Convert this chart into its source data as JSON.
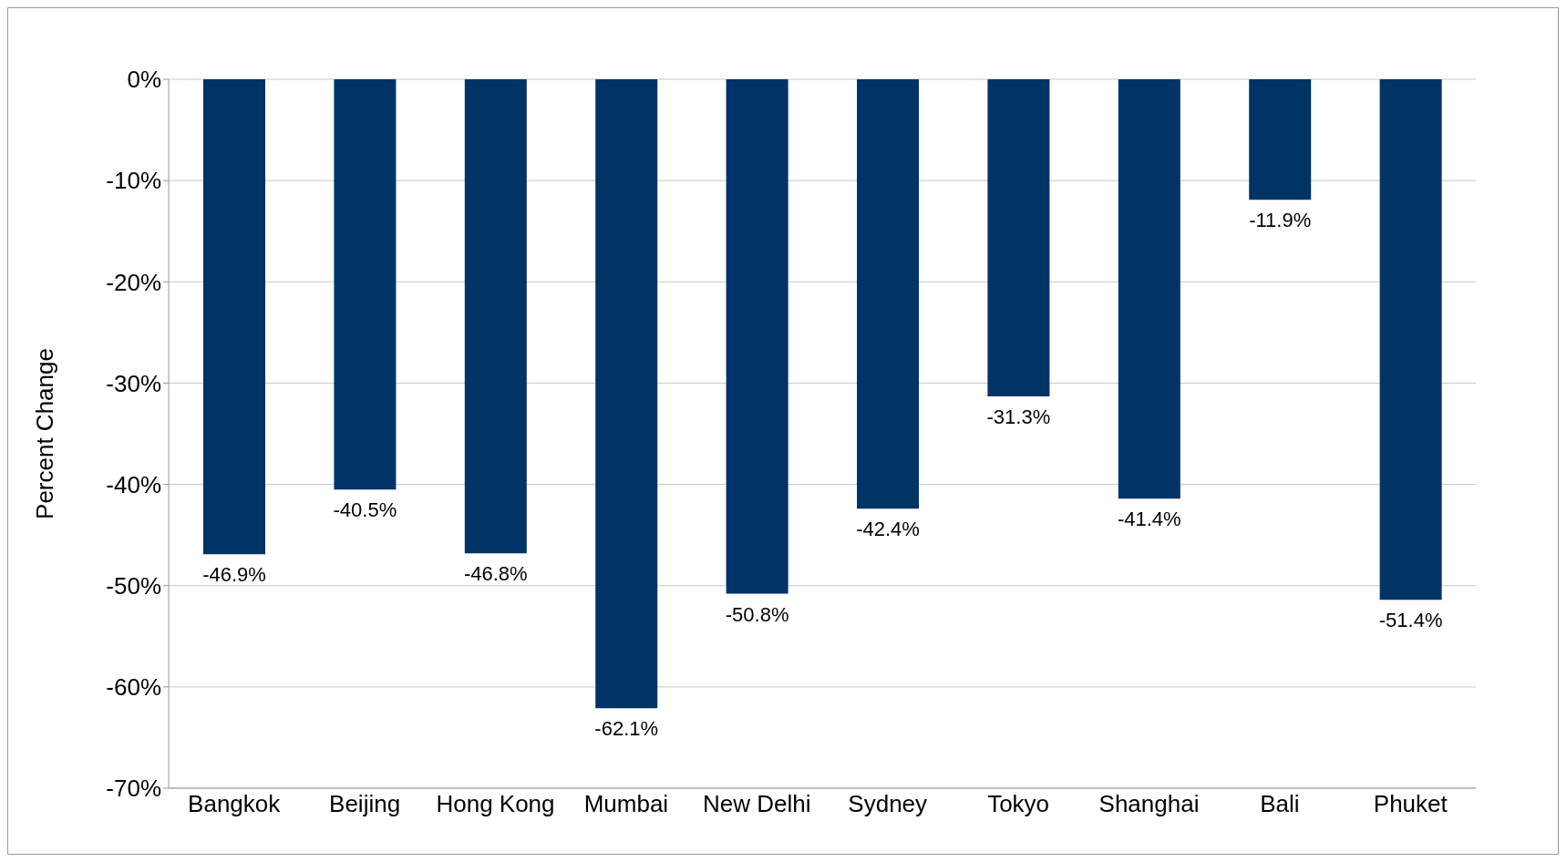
{
  "chart_data": {
    "type": "bar",
    "ylabel": "Percent Change",
    "categories": [
      "Bangkok",
      "Beijing",
      "Hong Kong",
      "Mumbai",
      "New Delhi",
      "Sydney",
      "Tokyo",
      "Shanghai",
      "Bali",
      "Phuket"
    ],
    "values": [
      -46.9,
      -40.5,
      -46.8,
      -62.1,
      -50.8,
      -42.4,
      -31.3,
      -41.4,
      -11.9,
      -51.4
    ],
    "value_labels": [
      "-46.9%",
      "-40.5%",
      "-46.8%",
      "-62.1%",
      "-50.8%",
      "-42.4%",
      "-31.3%",
      "-41.4%",
      "-11.9%",
      "-51.4%"
    ],
    "color": "#003366",
    "ylim": [
      -70,
      0
    ],
    "yticks": [
      {
        "value": -70,
        "label": "-70%"
      },
      {
        "value": -60,
        "label": "-60%"
      },
      {
        "value": -50,
        "label": "-50%"
      },
      {
        "value": -40,
        "label": "-40%"
      },
      {
        "value": -30,
        "label": "-30%"
      },
      {
        "value": -20,
        "label": "-20%"
      },
      {
        "value": -10,
        "label": "-10%"
      },
      {
        "value": 0,
        "label": "0%"
      }
    ],
    "grid": "y",
    "legend": false
  }
}
